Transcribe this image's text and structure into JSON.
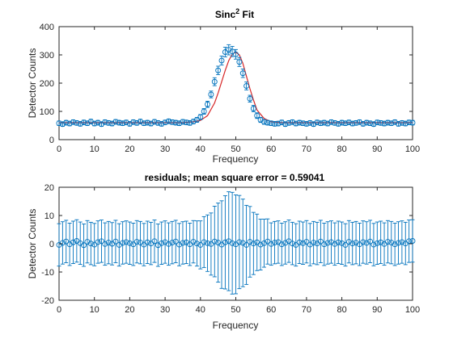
{
  "chart_data": [
    {
      "type": "scatter",
      "title": "Sinc",
      "title_superscript": "2",
      "title_suffix": " Fit",
      "xlabel": "Frequency",
      "ylabel": "Detector Counts",
      "xlim": [
        0,
        100
      ],
      "ylim": [
        0,
        400
      ],
      "xticks": [
        0,
        10,
        20,
        30,
        40,
        50,
        60,
        70,
        80,
        90,
        100
      ],
      "yticks": [
        0,
        100,
        200,
        300,
        400
      ],
      "grid": false,
      "marker": "circle",
      "colors": {
        "data": "#0072BD",
        "fit": "#D62728"
      },
      "series": [
        {
          "style": "errorbar-markers",
          "x": [
            0,
            1,
            2,
            3,
            4,
            5,
            6,
            7,
            8,
            9,
            10,
            11,
            12,
            13,
            14,
            15,
            16,
            17,
            18,
            19,
            20,
            21,
            22,
            23,
            24,
            25,
            26,
            27,
            28,
            29,
            30,
            31,
            32,
            33,
            34,
            35,
            36,
            37,
            38,
            39,
            40,
            41,
            42,
            43,
            44,
            45,
            46,
            47,
            48,
            49,
            50,
            51,
            52,
            53,
            54,
            55,
            56,
            57,
            58,
            59,
            60,
            61,
            62,
            63,
            64,
            65,
            66,
            67,
            68,
            69,
            70,
            71,
            72,
            73,
            74,
            75,
            76,
            77,
            78,
            79,
            80,
            81,
            82,
            83,
            84,
            85,
            86,
            87,
            88,
            89,
            90,
            91,
            92,
            93,
            94,
            95,
            96,
            97,
            98,
            99,
            100
          ],
          "y": [
            58,
            55,
            60,
            57,
            62,
            59,
            56,
            61,
            58,
            64,
            57,
            60,
            55,
            62,
            59,
            57,
            63,
            60,
            58,
            61,
            56,
            62,
            59,
            64,
            58,
            60,
            57,
            63,
            59,
            56,
            61,
            65,
            62,
            60,
            58,
            63,
            61,
            59,
            64,
            70,
            80,
            100,
            125,
            160,
            205,
            245,
            280,
            310,
            318,
            312,
            302,
            275,
            235,
            190,
            145,
            110,
            85,
            70,
            63,
            60,
            58,
            56,
            57,
            61,
            55,
            59,
            62,
            57,
            60,
            58,
            56,
            59,
            55,
            61,
            58,
            60,
            57,
            62,
            59,
            56,
            60,
            58,
            61,
            57,
            59,
            62,
            56,
            60,
            58,
            55,
            61,
            59,
            57,
            60,
            58,
            62,
            56,
            59,
            57,
            61,
            60
          ],
          "error": [
            8,
            8,
            8,
            8,
            8,
            8,
            8,
            8,
            8,
            8,
            8,
            8,
            8,
            8,
            8,
            8,
            8,
            8,
            8,
            8,
            8,
            8,
            8,
            8,
            8,
            8,
            8,
            8,
            8,
            8,
            8,
            8,
            8,
            8,
            8,
            8,
            8,
            8,
            8,
            8.5,
            9,
            10,
            11,
            12,
            14,
            15,
            16,
            17,
            18,
            18,
            17,
            16,
            15,
            14,
            12,
            11,
            10,
            9,
            8.5,
            8,
            8,
            8,
            8,
            8,
            8,
            8,
            8,
            8,
            8,
            8,
            8,
            8,
            8,
            8,
            8,
            8,
            8,
            8,
            8,
            8,
            8,
            8,
            8,
            8,
            8,
            8,
            8,
            8,
            8,
            8,
            8,
            8,
            8,
            8,
            8,
            8,
            8,
            8,
            8,
            8,
            8
          ]
        },
        {
          "style": "line",
          "x": [
            0,
            5,
            10,
            15,
            20,
            25,
            30,
            35,
            38,
            40,
            42,
            44,
            45,
            46,
            47,
            48,
            49,
            50,
            51,
            52,
            53,
            54,
            55,
            56,
            58,
            60,
            63,
            66,
            70,
            75,
            80,
            85,
            90,
            95,
            100
          ],
          "y": [
            60,
            60,
            60,
            60,
            60,
            60,
            60,
            60,
            63,
            68,
            85,
            130,
            165,
            205,
            245,
            280,
            302,
            310,
            300,
            270,
            225,
            180,
            140,
            105,
            75,
            63,
            60,
            60,
            60,
            60,
            60,
            60,
            60,
            60,
            60
          ]
        }
      ]
    },
    {
      "type": "scatter",
      "title": "residuals; mean square error = 0.59041",
      "xlabel": "Frequency",
      "ylabel": "Detector Counts",
      "xlim": [
        0,
        100
      ],
      "ylim": [
        -20,
        20
      ],
      "xticks": [
        0,
        10,
        20,
        30,
        40,
        50,
        60,
        70,
        80,
        90,
        100
      ],
      "yticks": [
        -20,
        -10,
        0,
        10,
        20
      ],
      "grid": false,
      "marker": "circle",
      "colors": {
        "data": "#0072BD"
      },
      "series": [
        {
          "style": "errorbar-markers",
          "x": [
            0,
            1,
            2,
            3,
            4,
            5,
            6,
            7,
            8,
            9,
            10,
            11,
            12,
            13,
            14,
            15,
            16,
            17,
            18,
            19,
            20,
            21,
            22,
            23,
            24,
            25,
            26,
            27,
            28,
            29,
            30,
            31,
            32,
            33,
            34,
            35,
            36,
            37,
            38,
            39,
            40,
            41,
            42,
            43,
            44,
            45,
            46,
            47,
            48,
            49,
            50,
            51,
            52,
            53,
            54,
            55,
            56,
            57,
            58,
            59,
            60,
            61,
            62,
            63,
            64,
            65,
            66,
            67,
            68,
            69,
            70,
            71,
            72,
            73,
            74,
            75,
            76,
            77,
            78,
            79,
            80,
            81,
            82,
            83,
            84,
            85,
            86,
            87,
            88,
            89,
            90,
            91,
            92,
            93,
            94,
            95,
            96,
            97,
            98,
            99,
            100
          ],
          "y": [
            -0.4,
            0.3,
            0.8,
            -0.2,
            0.5,
            1.0,
            0.2,
            -0.5,
            0.7,
            0.1,
            -0.3,
            0.6,
            0.9,
            -0.1,
            0.4,
            0.0,
            0.8,
            -0.4,
            0.3,
            0.6,
            0.2,
            -0.2,
            0.7,
            0.4,
            -0.3,
            0.5,
            0.1,
            0.9,
            -0.5,
            0.2,
            0.6,
            -0.1,
            0.4,
            0.8,
            -0.3,
            0.3,
            0.5,
            -0.2,
            0.7,
            0.1,
            -0.4,
            0.6,
            0.2,
            -0.1,
            0.8,
            0.4,
            -0.3,
            0.5,
            0.9,
            0.2,
            -0.2,
            0.6,
            0.3,
            -0.4,
            0.7,
            0.1,
            0.5,
            -0.3,
            0.2,
            0.8,
            -0.1,
            0.4,
            0.6,
            -0.2,
            0.3,
            0.9,
            0.1,
            -0.4,
            0.5,
            0.2,
            0.7,
            -0.3,
            0.4,
            0.1,
            0.8,
            -0.2,
            0.3,
            0.6,
            -0.1,
            0.5,
            0.2,
            -0.4,
            0.7,
            0.1,
            0.4,
            -0.2,
            0.6,
            0.3,
            0.8,
            -0.3,
            0.2,
            0.5,
            -0.1,
            0.7,
            0.4,
            -0.2,
            0.3,
            0.6,
            0.1,
            0.9,
            1.0
          ],
          "error": [
            7.5,
            7.5,
            7.5,
            7.5,
            7.5,
            7.5,
            7.5,
            7.5,
            7.5,
            7.5,
            7.5,
            7.5,
            7.5,
            7.5,
            7.5,
            7.5,
            7.5,
            7.5,
            7.5,
            7.5,
            7.5,
            7.5,
            7.5,
            7.5,
            7.5,
            7.5,
            7.5,
            7.5,
            7.5,
            7.5,
            7.5,
            7.5,
            7.5,
            7.5,
            7.5,
            7.5,
            7.5,
            7.5,
            7.5,
            8,
            8.5,
            9,
            10,
            11,
            12.5,
            14,
            15.5,
            16.5,
            17.5,
            18,
            17.5,
            16.5,
            15.5,
            14,
            12.5,
            11,
            10,
            9,
            8.5,
            8,
            7.5,
            7.5,
            7.5,
            7.5,
            7.5,
            7.5,
            7.5,
            7.5,
            7.5,
            7.5,
            7.5,
            7.5,
            7.5,
            7.5,
            7.5,
            7.5,
            7.5,
            7.5,
            7.5,
            7.5,
            7.5,
            7.5,
            7.5,
            7.5,
            7.5,
            7.5,
            7.5,
            7.5,
            7.5,
            7.5,
            7.5,
            7.5,
            7.5,
            7.5,
            7.5,
            7.5,
            7.5,
            7.5,
            7.5,
            7.5,
            7.5
          ]
        }
      ]
    }
  ]
}
